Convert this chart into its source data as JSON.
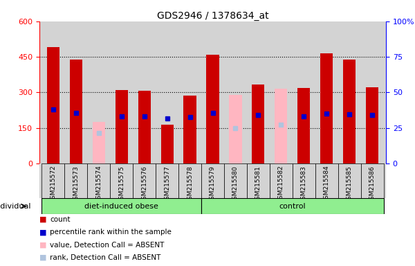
{
  "title": "GDS2946 / 1378634_at",
  "samples": [
    "GSM215572",
    "GSM215573",
    "GSM215574",
    "GSM215575",
    "GSM215576",
    "GSM215577",
    "GSM215578",
    "GSM215579",
    "GSM215580",
    "GSM215581",
    "GSM215582",
    "GSM215583",
    "GSM215584",
    "GSM215585",
    "GSM215586"
  ],
  "groups": [
    "diet-induced obese",
    "diet-induced obese",
    "diet-induced obese",
    "diet-induced obese",
    "diet-induced obese",
    "diet-induced obese",
    "diet-induced obese",
    "control",
    "control",
    "control",
    "control",
    "control",
    "control",
    "control",
    "control"
  ],
  "count_values": [
    490,
    440,
    0,
    310,
    308,
    165,
    286,
    460,
    0,
    332,
    0,
    318,
    465,
    440,
    322
  ],
  "rank_values": [
    38.0,
    35.5,
    0,
    33.0,
    33.0,
    31.5,
    32.5,
    35.5,
    0,
    34.0,
    0,
    33.0,
    35.2,
    34.8,
    34.0
  ],
  "absent_value_bars": [
    0,
    0,
    175,
    0,
    0,
    0,
    0,
    0,
    290,
    0,
    315,
    0,
    0,
    0,
    0
  ],
  "absent_rank_bars": [
    0,
    0,
    21.5,
    0,
    0,
    0,
    0,
    0,
    25.0,
    0,
    27.5,
    0,
    0,
    0,
    0
  ],
  "ylim_left": [
    0,
    600
  ],
  "ylim_right": [
    0,
    100
  ],
  "yticks_left": [
    0,
    150,
    300,
    450,
    600
  ],
  "yticks_right": [
    0,
    25,
    50,
    75,
    100
  ],
  "bar_color_count": "#CC0000",
  "bar_color_rank": "#0000CC",
  "bar_color_absent_value": "#FFB6C1",
  "bar_color_absent_rank": "#B0C4DE",
  "bar_width": 0.55,
  "plot_bg_color": "#d3d3d3",
  "group_color": "#90EE90",
  "legend_items": [
    [
      "#CC0000",
      "count"
    ],
    [
      "#0000CC",
      "percentile rank within the sample"
    ],
    [
      "#FFB6C1",
      "value, Detection Call = ABSENT"
    ],
    [
      "#B0C4DE",
      "rank, Detection Call = ABSENT"
    ]
  ]
}
